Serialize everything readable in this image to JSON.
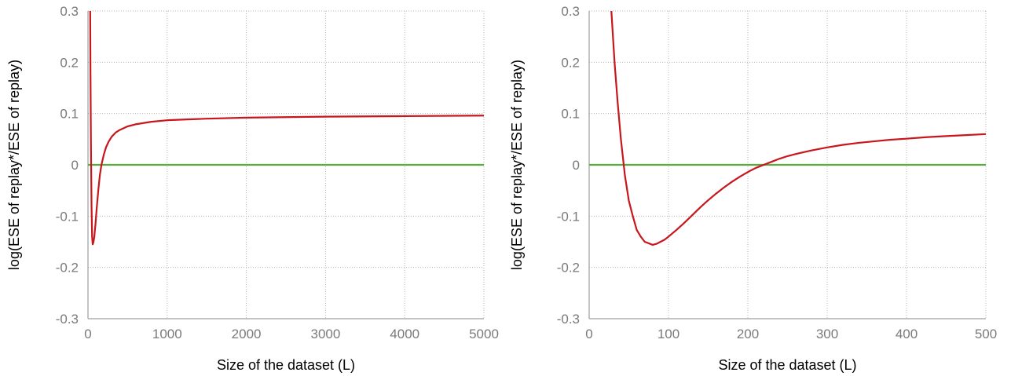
{
  "chart_data": [
    {
      "type": "line",
      "xlabel": "Size of the dataset (L)",
      "ylabel": "log(ESE of replay*/ESE of replay)",
      "xlim": [
        0,
        5000
      ],
      "ylim": [
        -0.3,
        0.3
      ],
      "xticks": [
        0,
        1000,
        2000,
        3000,
        4000,
        5000
      ],
      "yticks": [
        -0.3,
        -0.2,
        -0.1,
        0,
        0.1,
        0.2,
        0.3
      ],
      "xtick_labels": [
        "0",
        "1000",
        "2000",
        "3000",
        "4000",
        "5000"
      ],
      "ytick_labels": [
        "-0.3",
        "-0.2",
        "-0.1",
        "0",
        "0.1",
        "0.2",
        "0.3"
      ],
      "grid": true,
      "series": [
        {
          "color": "#c8161d",
          "x": [
            28,
            32,
            38,
            45,
            52,
            60,
            70,
            80,
            95,
            110,
            130,
            150,
            170,
            200,
            230,
            260,
            300,
            350,
            400,
            500,
            600,
            800,
            1000,
            1500,
            2000,
            3000,
            4000,
            5000
          ],
          "y": [
            0.3,
            0.17,
            0.03,
            -0.08,
            -0.14,
            -0.155,
            -0.15,
            -0.14,
            -0.115,
            -0.085,
            -0.05,
            -0.02,
            0.0,
            0.02,
            0.035,
            0.045,
            0.055,
            0.063,
            0.068,
            0.075,
            0.079,
            0.084,
            0.087,
            0.09,
            0.092,
            0.094,
            0.095,
            0.096
          ]
        },
        {
          "color": "#5aaa3c",
          "x": [
            0,
            5000
          ],
          "y": [
            0,
            0
          ]
        }
      ]
    },
    {
      "type": "line",
      "xlabel": "Size of the dataset (L)",
      "ylabel": "log(ESE of replay*/ESE of replay)",
      "xlim": [
        0,
        500
      ],
      "ylim": [
        -0.3,
        0.3
      ],
      "xticks": [
        0,
        100,
        200,
        300,
        400,
        500
      ],
      "yticks": [
        -0.3,
        -0.2,
        -0.1,
        0,
        0.1,
        0.2,
        0.3
      ],
      "xtick_labels": [
        "0",
        "100",
        "200",
        "300",
        "400",
        "500"
      ],
      "ytick_labels": [
        "-0.3",
        "-0.2",
        "-0.1",
        "0",
        "0.1",
        "0.2",
        "0.3"
      ],
      "grid": true,
      "series": [
        {
          "color": "#c8161d",
          "x": [
            28,
            32,
            36,
            40,
            45,
            50,
            55,
            60,
            65,
            70,
            75,
            80,
            85,
            90,
            95,
            100,
            110,
            120,
            130,
            140,
            150,
            160,
            170,
            180,
            190,
            200,
            210,
            220,
            230,
            240,
            250,
            260,
            280,
            300,
            320,
            340,
            360,
            380,
            400,
            425,
            450,
            475,
            500
          ],
          "y": [
            0.3,
            0.2,
            0.12,
            0.05,
            -0.02,
            -0.07,
            -0.1,
            -0.127,
            -0.14,
            -0.15,
            -0.153,
            -0.156,
            -0.154,
            -0.15,
            -0.146,
            -0.14,
            -0.127,
            -0.113,
            -0.098,
            -0.083,
            -0.069,
            -0.056,
            -0.044,
            -0.033,
            -0.023,
            -0.014,
            -0.006,
            0.0,
            0.006,
            0.012,
            0.017,
            0.021,
            0.028,
            0.034,
            0.039,
            0.043,
            0.046,
            0.049,
            0.051,
            0.054,
            0.056,
            0.058,
            0.06
          ]
        },
        {
          "color": "#5aaa3c",
          "x": [
            0,
            500
          ],
          "y": [
            0,
            0
          ]
        }
      ]
    }
  ]
}
